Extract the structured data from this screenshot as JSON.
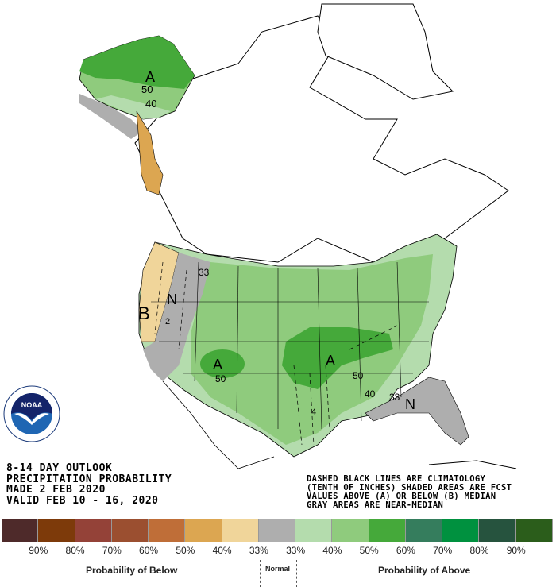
{
  "header": {
    "line1": "8-14 DAY OUTLOOK",
    "line2": "PRECIPITATION PROBABILITY",
    "line3": "MADE   2 FEB 2020",
    "line4": "VALID   FEB 10 - 16, 2020"
  },
  "notes": {
    "line1": "DASHED BLACK LINES ARE CLIMATOLOGY",
    "line2": "(TENTH OF INCHES) SHADED AREAS ARE FCST",
    "line3": "VALUES ABOVE (A) OR BELOW (B) MEDIAN",
    "line4": "GRAY AREAS ARE NEAR-MEDIAN"
  },
  "logo": {
    "text": "NOAA",
    "ring_text": "NATIONAL OCEANIC AND ATMOSPHERIC ADMINISTRATION - U.S. DEPARTMENT OF COMMERCE"
  },
  "map_labels": {
    "alaska_category": "A",
    "alaska_50": "50",
    "alaska_40": "40",
    "west_category_below": "B",
    "west_category_normal": "N",
    "west_33": "33",
    "west_clim_2": "2",
    "southwest_category": "A",
    "southwest_50": "50",
    "south_central_category": "A",
    "south_central_50": "50",
    "southeast_40": "40",
    "southeast_33": "33",
    "florida_category_normal": "N",
    "texas_clim_4": "4"
  },
  "legend": {
    "swatches": [
      {
        "label": "90% below",
        "color": "#4e2a2a"
      },
      {
        "label": "80% below",
        "color": "#7d3a0a"
      },
      {
        "label": "70% below",
        "color": "#944238"
      },
      {
        "label": "60% below",
        "color": "#9b4f30"
      },
      {
        "label": "50% below",
        "color": "#bf6e38"
      },
      {
        "label": "40% below",
        "color": "#dca651"
      },
      {
        "label": "33% below",
        "color": "#f0d59a"
      },
      {
        "label": "normal",
        "color": "#aeaeae"
      },
      {
        "label": "33% above",
        "color": "#b4dcad"
      },
      {
        "label": "40% above",
        "color": "#8fcb7d"
      },
      {
        "label": "50% above",
        "color": "#45a93a"
      },
      {
        "label": "60% above",
        "color": "#357d5d"
      },
      {
        "label": "70% above",
        "color": "#00913f"
      },
      {
        "label": "80% above",
        "color": "#26533e"
      },
      {
        "label": "90% above",
        "color": "#2b5d1b"
      }
    ],
    "ticks_below": [
      "90%",
      "80%",
      "70%",
      "60%",
      "50%",
      "40%",
      "33%"
    ],
    "ticks_above": [
      "33%",
      "40%",
      "50%",
      "60%",
      "70%",
      "80%",
      "90%"
    ],
    "caption_below": "Probability of Below",
    "caption_normal": "Normal",
    "caption_above": "Probability of Above"
  },
  "colors": {
    "above_33": "#b4dcad",
    "above_40": "#8fcb7d",
    "above_50": "#45a93a",
    "below_33": "#f0d59a",
    "below_40": "#dca651",
    "normal": "#a9a9a9"
  }
}
